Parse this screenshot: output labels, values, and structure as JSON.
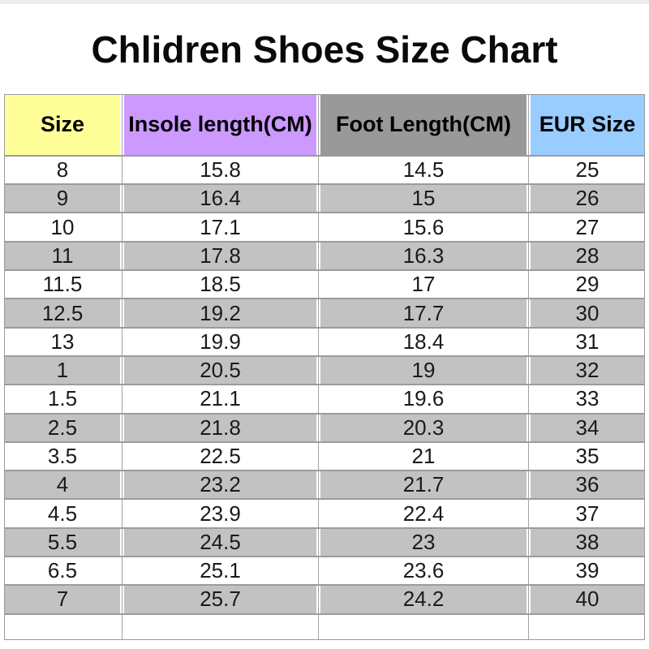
{
  "title": "Chlidren Shoes Size Chart",
  "chart_data": {
    "type": "table",
    "title": "Chlidren Shoes Size Chart",
    "columns": [
      "Size",
      "Insole length(CM)",
      "Foot Length(CM)",
      "EUR Size"
    ],
    "rows": [
      [
        "8",
        "15.8",
        "14.5",
        "25"
      ],
      [
        "9",
        "16.4",
        "15",
        "26"
      ],
      [
        "10",
        "17.1",
        "15.6",
        "27"
      ],
      [
        "11",
        "17.8",
        "16.3",
        "28"
      ],
      [
        "11.5",
        "18.5",
        "17",
        "29"
      ],
      [
        "12.5",
        "19.2",
        "17.7",
        "30"
      ],
      [
        "13",
        "19.9",
        "18.4",
        "31"
      ],
      [
        "1",
        "20.5",
        "19",
        "32"
      ],
      [
        "1.5",
        "21.1",
        "19.6",
        "33"
      ],
      [
        "2.5",
        "21.8",
        "20.3",
        "34"
      ],
      [
        "3.5",
        "22.5",
        "21",
        "35"
      ],
      [
        "4",
        "23.2",
        "21.7",
        "36"
      ],
      [
        "4.5",
        "23.9",
        "22.4",
        "37"
      ],
      [
        "5.5",
        "24.5",
        "23",
        "38"
      ],
      [
        "6.5",
        "25.1",
        "23.6",
        "39"
      ],
      [
        "7",
        "25.7",
        "24.2",
        "40"
      ]
    ],
    "layout": {
      "grid": true,
      "alternating_rows": true,
      "empty_trailing_row": true
    }
  },
  "table_style": {
    "header_colors": [
      "#ffff99",
      "#cc99ff",
      "#999999",
      "#99ccff"
    ],
    "alt_row_color": "#c2c2c2",
    "base_row_color": "#ffffff",
    "border_color": "#999999"
  },
  "page": {
    "top_bar_color": "#ededed",
    "background_color": "#ffffff"
  }
}
